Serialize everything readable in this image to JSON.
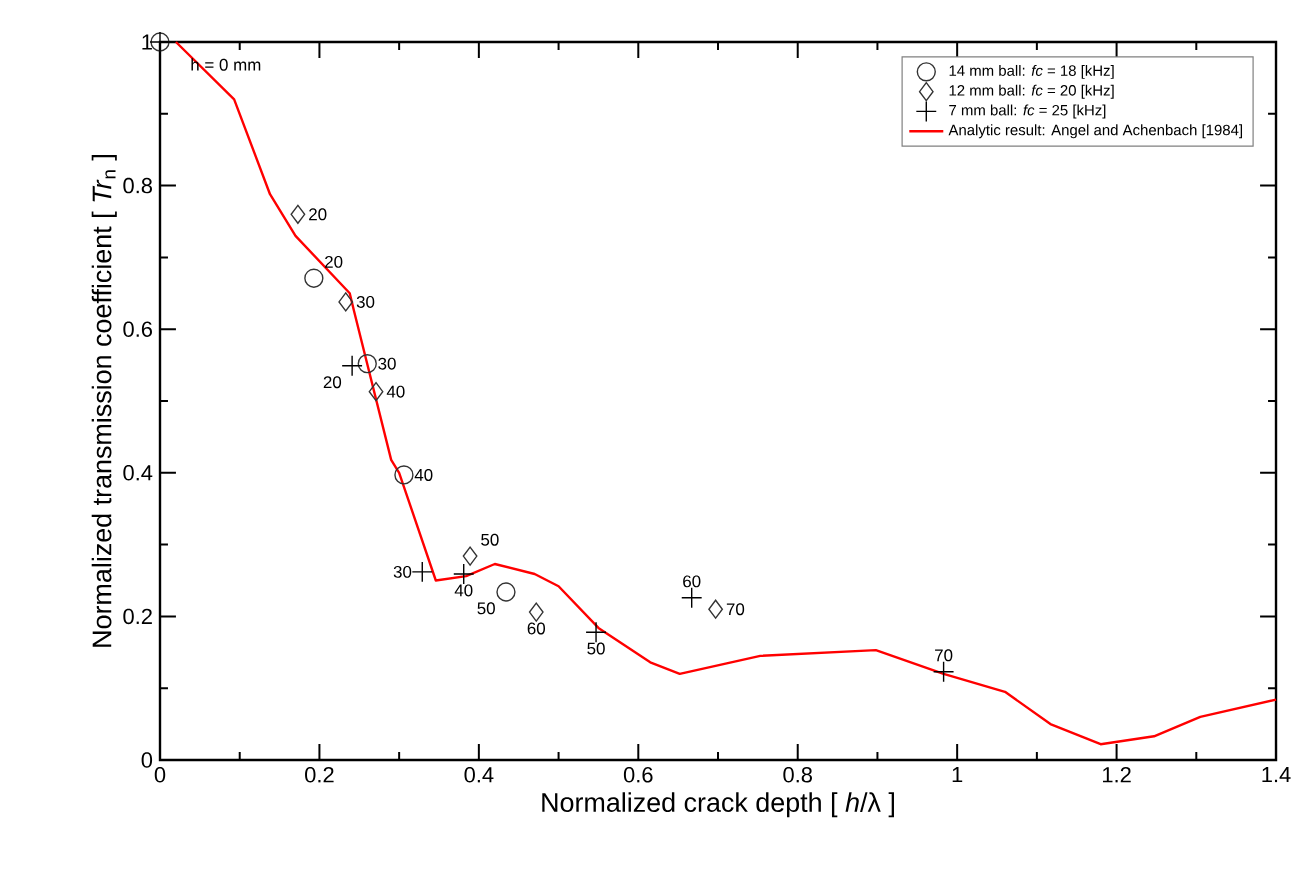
{
  "chart_data": {
    "type": "scatter",
    "xlabel": "Normalized crack depth [ *h*/λ ]",
    "ylabel": "Normalized transmission coefficient [ *Tr*$_{n}$ ]",
    "xlim": [
      0,
      1.4
    ],
    "ylim": [
      0,
      1
    ],
    "xticks": [
      0,
      0.2,
      0.4,
      0.6,
      0.8,
      1,
      1.2,
      1.4
    ],
    "yticks": [
      0,
      0.2,
      0.4,
      0.6,
      0.8,
      1
    ],
    "grid": false,
    "legend": "top right",
    "annotations": [
      {
        "text": "h = 0 mm",
        "x": 0,
        "y": 1
      },
      {
        "text": "20",
        "x": 0.193,
        "y": 0.671
      },
      {
        "text": "30",
        "x": 0.26,
        "y": 0.552
      },
      {
        "text": "40",
        "x": 0.306,
        "y": 0.397
      },
      {
        "text": "50",
        "x": 0.434,
        "y": 0.234
      },
      {
        "text": "20",
        "x": 0.173,
        "y": 0.76
      },
      {
        "text": "30",
        "x": 0.233,
        "y": 0.638
      },
      {
        "text": "40",
        "x": 0.271,
        "y": 0.513
      },
      {
        "text": "50",
        "x": 0.389,
        "y": 0.284
      },
      {
        "text": "60",
        "x": 0.472,
        "y": 0.206
      },
      {
        "text": "70",
        "x": 0.697,
        "y": 0.21
      },
      {
        "text": "20",
        "x": 0.241,
        "y": 0.549
      },
      {
        "text": "30",
        "x": 0.329,
        "y": 0.262
      },
      {
        "text": "40",
        "x": 0.381,
        "y": 0.259
      },
      {
        "text": "50",
        "x": 0.547,
        "y": 0.178
      },
      {
        "text": "60",
        "x": 0.667,
        "y": 0.226
      },
      {
        "text": "70",
        "x": 0.983,
        "y": 0.123
      }
    ],
    "series": [
      {
        "name": "14 mm ball: *fc* = 18 [kHz]",
        "marker": "circle",
        "color": "#333333",
        "x": [
          0,
          0.193,
          0.26,
          0.306,
          0.434
        ],
        "values": [
          1,
          0.671,
          0.552,
          0.397,
          0.234
        ]
      },
      {
        "name": "12 mm ball: *fc* = 20 [kHz]",
        "marker": "diamond",
        "color": "#333333",
        "x": [
          0.173,
          0.233,
          0.271,
          0.389,
          0.472,
          0.697
        ],
        "values": [
          0.76,
          0.638,
          0.513,
          0.284,
          0.206,
          0.21
        ]
      },
      {
        "name": "7 mm ball: *fc* = 25 [kHz]",
        "marker": "cross",
        "color": "#000000",
        "x": [
          0,
          0.241,
          0.329,
          0.381,
          0.547,
          0.667,
          0.983
        ],
        "values": [
          1,
          0.549,
          0.262,
          0.259,
          0.178,
          0.226,
          0.123
        ]
      },
      {
        "name": "Analytic result: Angel and Achenbach [1984]",
        "type": "line",
        "marker": "none",
        "color": "#ff0000",
        "x": [
          0.02,
          0.093,
          0.138,
          0.17,
          0.238,
          0.243,
          0.29,
          0.3,
          0.346,
          0.384,
          0.42,
          0.47,
          0.5,
          0.55,
          0.615,
          0.652,
          0.753,
          0.898,
          0.983,
          1.06,
          1.117,
          1.18,
          1.247,
          1.305,
          1.4
        ],
        "values": [
          1,
          0.92,
          0.788,
          0.73,
          0.65,
          0.627,
          0.418,
          0.4,
          0.25,
          0.256,
          0.273,
          0.259,
          0.242,
          0.184,
          0.136,
          0.12,
          0.145,
          0.153,
          0.12,
          0.095,
          0.05,
          0.022,
          0.033,
          0.06,
          0.084
        ]
      }
    ]
  }
}
